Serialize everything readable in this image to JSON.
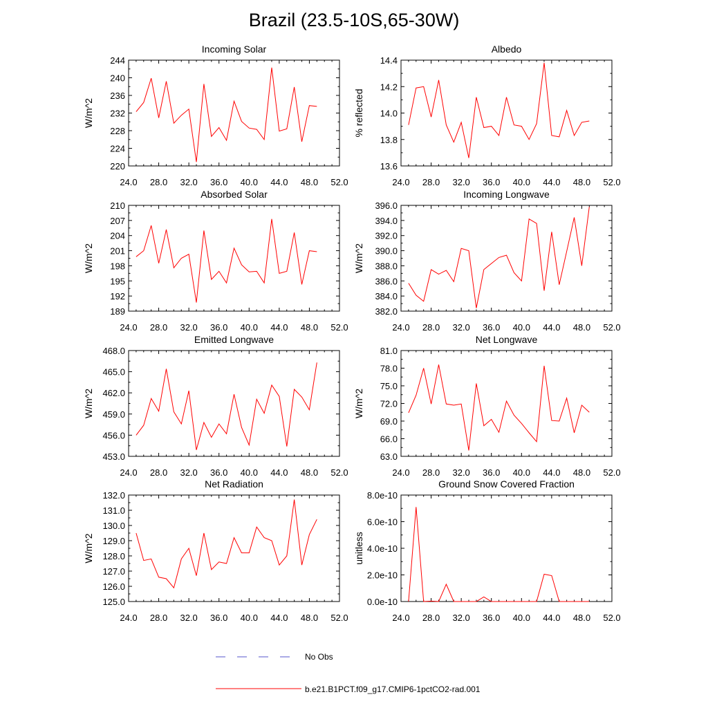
{
  "title": "Brazil (23.5-10S,65-30W)",
  "legend": {
    "obs_label": "No Obs",
    "obs_color": "#5555cc",
    "model_label": "b.e21.B1PCT.f09_g17.CMIP6-1pctCO2-rad.001",
    "model_color": "#ff0000"
  },
  "chart_data": [
    {
      "type": "line",
      "title": "Incoming Solar",
      "ylabel": "W/m^2",
      "xlim": [
        24,
        52
      ],
      "ylim": [
        220,
        244
      ],
      "xticks": [
        "24.0",
        "28.0",
        "32.0",
        "36.0",
        "40.0",
        "44.0",
        "48.0",
        "52.0"
      ],
      "yticks": [
        "220",
        "224",
        "228",
        "232",
        "236",
        "240",
        "244"
      ],
      "x": [
        25,
        26,
        27,
        28,
        29,
        30,
        31,
        32,
        33,
        34,
        35,
        36,
        37,
        38,
        39,
        40,
        41,
        42,
        43,
        44,
        45,
        46,
        47,
        48,
        49
      ],
      "values": [
        232.3,
        234.4,
        239.9,
        230.9,
        239.2,
        229.7,
        231.5,
        232.9,
        220.9,
        238.6,
        226.7,
        228.7,
        225.8,
        234.7,
        230.1,
        228.6,
        228.3,
        226.0,
        242.3,
        227.9,
        228.4,
        237.9,
        225.5,
        233.7,
        233.5
      ]
    },
    {
      "type": "line",
      "title": "Albedo",
      "ylabel": "% reflected",
      "xlim": [
        24,
        52
      ],
      "ylim": [
        13.6,
        14.4
      ],
      "xticks": [
        "24.0",
        "28.0",
        "32.0",
        "36.0",
        "40.0",
        "44.0",
        "48.0",
        "52.0"
      ],
      "yticks": [
        "13.6",
        "13.8",
        "14.0",
        "14.2",
        "14.4"
      ],
      "x": [
        25,
        26,
        27,
        28,
        29,
        30,
        31,
        32,
        33,
        34,
        35,
        36,
        37,
        38,
        39,
        40,
        41,
        42,
        43,
        44,
        45,
        46,
        47,
        48,
        49
      ],
      "values": [
        13.91,
        14.19,
        14.2,
        13.97,
        14.25,
        13.91,
        13.78,
        13.93,
        13.66,
        14.12,
        13.89,
        13.9,
        13.83,
        14.12,
        13.91,
        13.9,
        13.8,
        13.92,
        14.38,
        13.83,
        13.82,
        14.02,
        13.83,
        13.93,
        13.94
      ]
    },
    {
      "type": "line",
      "title": "Absorbed Solar",
      "ylabel": "W/m^2",
      "xlim": [
        24,
        52
      ],
      "ylim": [
        189,
        210
      ],
      "xticks": [
        "24.0",
        "28.0",
        "32.0",
        "36.0",
        "40.0",
        "44.0",
        "48.0",
        "52.0"
      ],
      "yticks": [
        "189",
        "192",
        "195",
        "198",
        "201",
        "204",
        "207",
        "210"
      ],
      "x": [
        25,
        26,
        27,
        28,
        29,
        30,
        31,
        32,
        33,
        34,
        35,
        36,
        37,
        38,
        39,
        40,
        41,
        42,
        43,
        44,
        45,
        46,
        47,
        48,
        49
      ],
      "values": [
        199.8,
        201.0,
        206.0,
        198.5,
        205.2,
        197.6,
        199.5,
        200.3,
        190.7,
        205.0,
        195.3,
        196.9,
        194.6,
        201.5,
        198.2,
        196.8,
        196.9,
        194.6,
        207.3,
        196.5,
        196.9,
        204.6,
        194.3,
        201.0,
        200.8
      ]
    },
    {
      "type": "line",
      "title": "Incoming Longwave",
      "ylabel": "W/m^2",
      "xlim": [
        24,
        52
      ],
      "ylim": [
        382,
        396
      ],
      "xticks": [
        "24.0",
        "28.0",
        "32.0",
        "36.0",
        "40.0",
        "44.0",
        "48.0",
        "52.0"
      ],
      "yticks": [
        "382.0",
        "384.0",
        "386.0",
        "388.0",
        "390.0",
        "392.0",
        "394.0",
        "396.0"
      ],
      "x": [
        25,
        26,
        27,
        28,
        29,
        30,
        31,
        32,
        33,
        34,
        35,
        36,
        37,
        38,
        39,
        40,
        41,
        42,
        43,
        44,
        45,
        46,
        47,
        48,
        49
      ],
      "values": [
        385.7,
        384.1,
        383.3,
        387.5,
        386.9,
        387.4,
        385.9,
        390.3,
        390.0,
        382.4,
        387.5,
        388.3,
        389.1,
        389.4,
        387.1,
        386.0,
        394.2,
        393.6,
        384.7,
        392.5,
        385.5,
        389.9,
        394.4,
        388.0,
        395.8
      ]
    },
    {
      "type": "line",
      "title": "Emitted Longwave",
      "ylabel": "W/m^2",
      "xlim": [
        24,
        52
      ],
      "ylim": [
        453,
        468
      ],
      "xticks": [
        "24.0",
        "28.0",
        "32.0",
        "36.0",
        "40.0",
        "44.0",
        "48.0",
        "52.0"
      ],
      "yticks": [
        "453.0",
        "456.0",
        "459.0",
        "462.0",
        "465.0",
        "468.0"
      ],
      "x": [
        25,
        26,
        27,
        28,
        29,
        30,
        31,
        32,
        33,
        34,
        35,
        36,
        37,
        38,
        39,
        40,
        41,
        42,
        43,
        44,
        45,
        46,
        47,
        48,
        49
      ],
      "values": [
        456.0,
        457.4,
        461.2,
        459.4,
        465.4,
        459.3,
        457.6,
        462.3,
        453.9,
        457.8,
        455.7,
        457.6,
        456.2,
        461.8,
        457.1,
        454.6,
        461.1,
        459.1,
        463.1,
        461.5,
        454.4,
        462.5,
        461.4,
        459.6,
        466.3
      ]
    },
    {
      "type": "line",
      "title": "Net Longwave",
      "ylabel": "W/m^2",
      "xlim": [
        24,
        52
      ],
      "ylim": [
        63,
        81
      ],
      "xticks": [
        "24.0",
        "28.0",
        "32.0",
        "36.0",
        "40.0",
        "44.0",
        "48.0",
        "52.0"
      ],
      "yticks": [
        "63.0",
        "66.0",
        "69.0",
        "72.0",
        "75.0",
        "78.0",
        "81.0"
      ],
      "x": [
        25,
        26,
        27,
        28,
        29,
        30,
        31,
        32,
        33,
        34,
        35,
        36,
        37,
        38,
        39,
        40,
        41,
        42,
        43,
        44,
        45,
        46,
        47,
        48,
        49
      ],
      "values": [
        70.4,
        73.4,
        78.0,
        71.9,
        78.6,
        71.9,
        71.7,
        71.9,
        64.0,
        75.4,
        68.2,
        69.3,
        67.1,
        72.4,
        70.0,
        68.6,
        67.0,
        65.5,
        78.4,
        69.1,
        69.0,
        72.9,
        67.0,
        71.7,
        70.5
      ]
    },
    {
      "type": "line",
      "title": "Net Radiation",
      "ylabel": "W/m^2",
      "xlim": [
        24,
        52
      ],
      "ylim": [
        125,
        132
      ],
      "xticks": [
        "24.0",
        "28.0",
        "32.0",
        "36.0",
        "40.0",
        "44.0",
        "48.0",
        "52.0"
      ],
      "yticks": [
        "125.0",
        "126.0",
        "127.0",
        "128.0",
        "129.0",
        "130.0",
        "131.0",
        "132.0"
      ],
      "x": [
        25,
        26,
        27,
        28,
        29,
        30,
        31,
        32,
        33,
        34,
        35,
        36,
        37,
        38,
        39,
        40,
        41,
        42,
        43,
        44,
        45,
        46,
        47,
        48,
        49
      ],
      "values": [
        129.5,
        127.7,
        127.8,
        126.6,
        126.5,
        125.9,
        127.8,
        128.5,
        126.7,
        129.5,
        127.1,
        127.6,
        127.5,
        129.2,
        128.2,
        128.2,
        129.9,
        129.2,
        129.0,
        127.4,
        128.0,
        131.7,
        127.4,
        129.4,
        130.4
      ]
    },
    {
      "type": "line",
      "title": "Ground Snow Covered Fraction",
      "ylabel": "unitless",
      "xlim": [
        24,
        52
      ],
      "ylim": [
        0,
        8e-10
      ],
      "xticks": [
        "24.0",
        "28.0",
        "32.0",
        "36.0",
        "40.0",
        "44.0",
        "48.0",
        "52.0"
      ],
      "yticks": [
        "0.0e-10",
        "2.0e-10",
        "4.0e-10",
        "6.0e-10",
        "8.0e-10"
      ],
      "x": [
        25,
        26,
        27,
        28,
        29,
        30,
        31,
        32,
        33,
        34,
        35,
        36,
        37,
        38,
        39,
        40,
        41,
        42,
        43,
        44,
        45,
        46,
        47,
        48,
        49
      ],
      "values": [
        0,
        7.1e-10,
        0,
        3e-12,
        0,
        1.3e-10,
        0,
        0,
        0,
        0,
        3.5e-11,
        0,
        0,
        0,
        0,
        0,
        0,
        0,
        2.05e-10,
        1.95e-10,
        0,
        0,
        0,
        0,
        0
      ]
    }
  ]
}
